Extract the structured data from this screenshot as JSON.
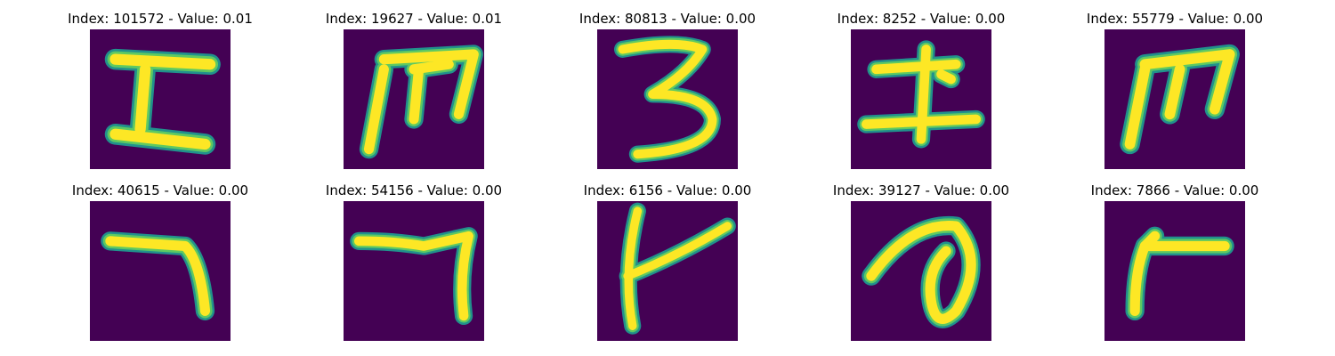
{
  "figure": {
    "panels": [
      {
        "index": "101572",
        "value": "0.01",
        "title": "Index: 101572 - Value: 0.01",
        "glyph": "I-like"
      },
      {
        "index": "19627",
        "value": "0.01",
        "title": "Index: 19627 - Value: 0.01",
        "glyph": "m-like"
      },
      {
        "index": "80813",
        "value": "0.00",
        "title": "Index: 80813 - Value: 0.00",
        "glyph": "3-like"
      },
      {
        "index": "8252",
        "value": "0.00",
        "title": "Index: 8252 - Value: 0.00",
        "glyph": "I-with-dot"
      },
      {
        "index": "55779",
        "value": "0.00",
        "title": "Index: 55779 - Value: 0.00",
        "glyph": "m-like"
      },
      {
        "index": "40615",
        "value": "0.00",
        "title": "Index: 40615 - Value: 0.00",
        "glyph": "7-like"
      },
      {
        "index": "54156",
        "value": "0.00",
        "title": "Index: 54156 - Value: 0.00",
        "glyph": "7-like"
      },
      {
        "index": "6156",
        "value": "0.00",
        "title": "Index: 6156 - Value: 0.00",
        "glyph": "t-like"
      },
      {
        "index": "39127",
        "value": "0.00",
        "title": "Index: 39127 - Value: 0.00",
        "glyph": "a-loop"
      },
      {
        "index": "7866",
        "value": "0.00",
        "title": "Index: 7866 - Value: 0.00",
        "glyph": "r-like"
      }
    ],
    "colors": {
      "background": "#440154",
      "stroke_core": "#fde725",
      "stroke_edge": "#21918c",
      "stroke_mid": "#5ec962"
    }
  }
}
